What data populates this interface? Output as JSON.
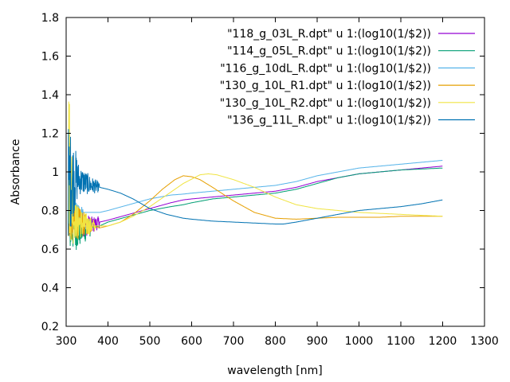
{
  "chart_data": {
    "type": "line",
    "title": "",
    "xlabel": "wavelength [nm]",
    "ylabel": "Absorbance",
    "xlim": [
      300,
      1300
    ],
    "ylim": [
      0.2,
      1.8
    ],
    "xticks": [
      300,
      400,
      500,
      600,
      700,
      800,
      900,
      1000,
      1100,
      1200,
      1300
    ],
    "yticks": [
      0.2,
      0.4,
      0.6,
      0.8,
      1.0,
      1.2,
      1.4,
      1.6,
      1.8
    ],
    "xtick_labels": [
      "300",
      "400",
      "500",
      "600",
      "700",
      "800",
      "900",
      "1000",
      "1100",
      "1200",
      "1300"
    ],
    "ytick_labels": [
      "0.2",
      "0.4",
      "0.6",
      "0.8",
      "1",
      "1.2",
      "1.4",
      "1.6",
      "1.8"
    ],
    "grid": false,
    "legend_position": "top-right",
    "series": [
      {
        "name": "\"118_g_03L_R.dpt\"  u 1:(log10(1/$2))",
        "color": "#9400d3",
        "noise": [
          [
            305,
            380,
            0.1
          ]
        ],
        "x": [
          305,
          320,
          340,
          360,
          380,
          400,
          450,
          500,
          550,
          580,
          600,
          650,
          700,
          750,
          800,
          850,
          900,
          950,
          1000,
          1050,
          1100,
          1150,
          1200
        ],
        "y": [
          0.74,
          0.74,
          0.73,
          0.72,
          0.74,
          0.75,
          0.78,
          0.81,
          0.84,
          0.855,
          0.86,
          0.87,
          0.88,
          0.89,
          0.9,
          0.92,
          0.95,
          0.97,
          0.99,
          1.0,
          1.01,
          1.02,
          1.03
        ]
      },
      {
        "name": "\"114_g_05L_R.dpt\"  u 1:(log10(1/$2))",
        "color": "#009e73",
        "noise": [
          [
            305,
            360,
            0.14
          ]
        ],
        "x": [
          305,
          320,
          340,
          360,
          380,
          400,
          450,
          500,
          550,
          580,
          600,
          650,
          700,
          750,
          800,
          850,
          900,
          950,
          1000,
          1050,
          1100,
          1150,
          1200
        ],
        "y": [
          0.72,
          0.7,
          0.7,
          0.71,
          0.72,
          0.74,
          0.77,
          0.8,
          0.82,
          0.83,
          0.84,
          0.86,
          0.87,
          0.88,
          0.89,
          0.91,
          0.94,
          0.97,
          0.99,
          1.0,
          1.01,
          1.015,
          1.02
        ]
      },
      {
        "name": "\"116_g_10dL_R.dpt\"  u 1:(log10(1/$2))",
        "color": "#56b4e9",
        "noise": [
          [
            305,
            340,
            0.1
          ]
        ],
        "x": [
          305,
          320,
          340,
          360,
          380,
          400,
          450,
          500,
          550,
          580,
          600,
          650,
          700,
          750,
          800,
          850,
          900,
          950,
          1000,
          1050,
          1100,
          1150,
          1200
        ],
        "y": [
          0.8,
          0.79,
          0.79,
          0.79,
          0.79,
          0.8,
          0.83,
          0.86,
          0.88,
          0.885,
          0.89,
          0.9,
          0.91,
          0.92,
          0.93,
          0.95,
          0.98,
          1.0,
          1.02,
          1.03,
          1.04,
          1.05,
          1.06
        ]
      },
      {
        "name": "\"130_g_10L_R1.dpt\"  u 1:(log10(1/$2))",
        "color": "#e69f00",
        "noise": [
          [
            305,
            360,
            0.12
          ]
        ],
        "x": [
          305,
          320,
          340,
          360,
          380,
          400,
          430,
          460,
          500,
          530,
          560,
          580,
          600,
          620,
          650,
          700,
          750,
          800,
          850,
          900,
          950,
          1000,
          1050,
          1100,
          1150,
          1200
        ],
        "y": [
          0.76,
          0.74,
          0.73,
          0.72,
          0.71,
          0.72,
          0.74,
          0.78,
          0.85,
          0.91,
          0.96,
          0.98,
          0.975,
          0.96,
          0.92,
          0.85,
          0.79,
          0.76,
          0.755,
          0.76,
          0.765,
          0.765,
          0.765,
          0.77,
          0.77,
          0.77
        ]
      },
      {
        "name": "\"130_g_10L_R2.dpt\"  u 1:(log10(1/$2))",
        "color": "#f0e442",
        "noise": [
          [
            305,
            320,
            0.45
          ],
          [
            320,
            370,
            0.1
          ]
        ],
        "x": [
          305,
          320,
          340,
          360,
          380,
          400,
          430,
          460,
          500,
          540,
          580,
          620,
          640,
          660,
          700,
          750,
          800,
          850,
          900,
          950,
          1000,
          1050,
          1100,
          1150,
          1200
        ],
        "y": [
          1.1,
          0.75,
          0.73,
          0.72,
          0.72,
          0.72,
          0.74,
          0.77,
          0.82,
          0.88,
          0.94,
          0.985,
          0.99,
          0.985,
          0.96,
          0.92,
          0.87,
          0.83,
          0.81,
          0.8,
          0.79,
          0.785,
          0.78,
          0.775,
          0.77
        ]
      },
      {
        "name": "\"136_g_11L_R.dpt\"  u 1:(log10(1/$2))",
        "color": "#0072b2",
        "noise": [
          [
            305,
            330,
            0.3
          ],
          [
            330,
            380,
            0.08
          ]
        ],
        "x": [
          305,
          320,
          340,
          360,
          380,
          400,
          430,
          460,
          500,
          540,
          580,
          600,
          650,
          700,
          750,
          800,
          820,
          850,
          900,
          950,
          1000,
          1050,
          1100,
          1150,
          1200
        ],
        "y": [
          0.95,
          0.97,
          0.95,
          0.93,
          0.92,
          0.91,
          0.89,
          0.86,
          0.81,
          0.78,
          0.76,
          0.755,
          0.745,
          0.74,
          0.735,
          0.73,
          0.73,
          0.74,
          0.76,
          0.78,
          0.8,
          0.81,
          0.82,
          0.835,
          0.855
        ]
      }
    ]
  }
}
